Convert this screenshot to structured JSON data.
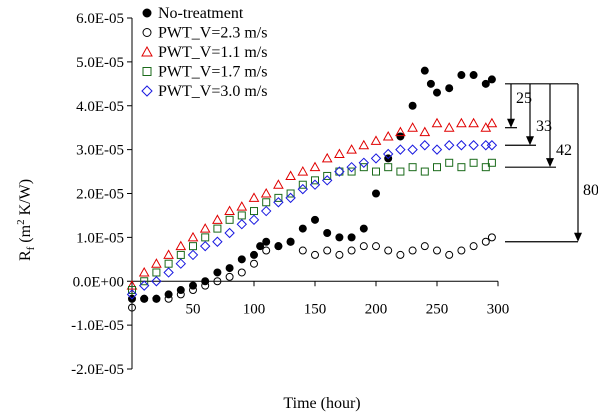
{
  "chart_data": {
    "type": "scatter",
    "title": "",
    "xlabel": "Time (hour)",
    "ylabel_base": "R",
    "ylabel_sub": "f",
    "ylabel_open": " (m",
    "ylabel_sup": "2",
    "ylabel_rest": " K/W)",
    "xlim": [
      0,
      300
    ],
    "ylim": [
      -2e-05,
      6e-05
    ],
    "x_ticks": [
      "50",
      "100",
      "150",
      "200",
      "250",
      "300"
    ],
    "x_tick_values": [
      50,
      100,
      150,
      200,
      250,
      300
    ],
    "y_ticks": [
      "6.0E-05",
      "5.0E-05",
      "4.0E-05",
      "3.0E-05",
      "2.0E-05",
      "1.0E-05",
      "0.0E+00",
      "-1.0E-05",
      "-2.0E-05"
    ],
    "y_tick_values": [
      6e-05,
      5e-05,
      4e-05,
      3e-05,
      2e-05,
      1e-05,
      0,
      -1e-05,
      -2e-05
    ],
    "legend_position": "top-left",
    "series": [
      {
        "name": "No-treatment",
        "marker": "filled-circle",
        "color": "#000000",
        "points": [
          [
            0,
            -4e-06
          ],
          [
            10,
            -4e-06
          ],
          [
            20,
            -4e-06
          ],
          [
            30,
            -3e-06
          ],
          [
            40,
            -2e-06
          ],
          [
            50,
            -1e-06
          ],
          [
            60,
            0
          ],
          [
            70,
            2e-06
          ],
          [
            80,
            3e-06
          ],
          [
            90,
            5e-06
          ],
          [
            100,
            6e-06
          ],
          [
            105,
            8e-06
          ],
          [
            110,
            9e-06
          ],
          [
            120,
            8e-06
          ],
          [
            130,
            9e-06
          ],
          [
            140,
            1.2e-05
          ],
          [
            150,
            1.4e-05
          ],
          [
            160,
            1.1e-05
          ],
          [
            170,
            1e-05
          ],
          [
            180,
            1e-05
          ],
          [
            190,
            1.2e-05
          ],
          [
            200,
            2e-05
          ],
          [
            210,
            2.8e-05
          ],
          [
            220,
            3.3e-05
          ],
          [
            230,
            4e-05
          ],
          [
            240,
            4.8e-05
          ],
          [
            245,
            4.5e-05
          ],
          [
            250,
            4.3e-05
          ],
          [
            260,
            4.4e-05
          ],
          [
            270,
            4.7e-05
          ],
          [
            280,
            4.7e-05
          ],
          [
            290,
            4.5e-05
          ],
          [
            295,
            4.6e-05
          ]
        ]
      },
      {
        "name": "PWT_V=2.3 m/s",
        "marker": "open-circle",
        "color": "#000000",
        "points": [
          [
            0,
            -6e-06
          ],
          [
            10,
            -4e-06
          ],
          [
            20,
            -4e-06
          ],
          [
            30,
            -4e-06
          ],
          [
            40,
            -3e-06
          ],
          [
            50,
            -2e-06
          ],
          [
            60,
            -1e-06
          ],
          [
            70,
            0
          ],
          [
            80,
            1e-06
          ],
          [
            90,
            2e-06
          ],
          [
            100,
            4e-06
          ],
          [
            110,
            7e-06
          ],
          [
            120,
            8e-06
          ],
          [
            130,
            9e-06
          ],
          [
            140,
            7e-06
          ],
          [
            150,
            6e-06
          ],
          [
            160,
            7e-06
          ],
          [
            170,
            6e-06
          ],
          [
            180,
            7e-06
          ],
          [
            190,
            8e-06
          ],
          [
            200,
            8e-06
          ],
          [
            210,
            7e-06
          ],
          [
            220,
            6e-06
          ],
          [
            230,
            7e-06
          ],
          [
            240,
            8e-06
          ],
          [
            250,
            7e-06
          ],
          [
            260,
            6e-06
          ],
          [
            270,
            7e-06
          ],
          [
            280,
            8e-06
          ],
          [
            290,
            9e-06
          ],
          [
            295,
            1e-05
          ]
        ]
      },
      {
        "name": "PWT_V=1.1 m/s",
        "marker": "open-triangle",
        "color": "#e00000",
        "points": [
          [
            0,
            -1e-06
          ],
          [
            10,
            2e-06
          ],
          [
            20,
            4e-06
          ],
          [
            30,
            6e-06
          ],
          [
            40,
            8e-06
          ],
          [
            50,
            1e-05
          ],
          [
            60,
            1.2e-05
          ],
          [
            70,
            1.4e-05
          ],
          [
            80,
            1.6e-05
          ],
          [
            90,
            1.7e-05
          ],
          [
            100,
            1.9e-05
          ],
          [
            110,
            2e-05
          ],
          [
            120,
            2.2e-05
          ],
          [
            130,
            2.4e-05
          ],
          [
            140,
            2.5e-05
          ],
          [
            150,
            2.6e-05
          ],
          [
            160,
            2.8e-05
          ],
          [
            170,
            2.9e-05
          ],
          [
            180,
            3e-05
          ],
          [
            190,
            3.1e-05
          ],
          [
            200,
            3.2e-05
          ],
          [
            210,
            3.3e-05
          ],
          [
            220,
            3.4e-05
          ],
          [
            230,
            3.5e-05
          ],
          [
            240,
            3.4e-05
          ],
          [
            250,
            3.6e-05
          ],
          [
            260,
            3.5e-05
          ],
          [
            270,
            3.6e-05
          ],
          [
            280,
            3.6e-05
          ],
          [
            290,
            3.5e-05
          ],
          [
            295,
            3.6e-05
          ]
        ]
      },
      {
        "name": "PWT_V=1.7 m/s",
        "marker": "open-square",
        "color": "#1a6a1a",
        "points": [
          [
            0,
            -2e-06
          ],
          [
            10,
            0
          ],
          [
            20,
            2e-06
          ],
          [
            30,
            4e-06
          ],
          [
            40,
            6e-06
          ],
          [
            50,
            8e-06
          ],
          [
            60,
            1e-05
          ],
          [
            70,
            1.2e-05
          ],
          [
            80,
            1.4e-05
          ],
          [
            90,
            1.5e-05
          ],
          [
            100,
            1.6e-05
          ],
          [
            110,
            1.8e-05
          ],
          [
            120,
            1.9e-05
          ],
          [
            130,
            2e-05
          ],
          [
            140,
            2.2e-05
          ],
          [
            150,
            2.3e-05
          ],
          [
            160,
            2.4e-05
          ],
          [
            170,
            2.5e-05
          ],
          [
            180,
            2.5e-05
          ],
          [
            190,
            2.6e-05
          ],
          [
            200,
            2.5e-05
          ],
          [
            210,
            2.6e-05
          ],
          [
            220,
            2.5e-05
          ],
          [
            230,
            2.6e-05
          ],
          [
            240,
            2.5e-05
          ],
          [
            250,
            2.6e-05
          ],
          [
            260,
            2.7e-05
          ],
          [
            270,
            2.6e-05
          ],
          [
            280,
            2.7e-05
          ],
          [
            290,
            2.6e-05
          ],
          [
            295,
            2.7e-05
          ]
        ]
      },
      {
        "name": "PWT_V=3.0 m/s",
        "marker": "open-diamond",
        "color": "#1a1ae0",
        "points": [
          [
            0,
            -3e-06
          ],
          [
            10,
            -1e-06
          ],
          [
            20,
            0
          ],
          [
            30,
            2e-06
          ],
          [
            40,
            4e-06
          ],
          [
            50,
            6e-06
          ],
          [
            60,
            8e-06
          ],
          [
            70,
            9e-06
          ],
          [
            80,
            1.1e-05
          ],
          [
            90,
            1.3e-05
          ],
          [
            100,
            1.4e-05
          ],
          [
            110,
            1.6e-05
          ],
          [
            120,
            1.8e-05
          ],
          [
            130,
            1.9e-05
          ],
          [
            140,
            2.1e-05
          ],
          [
            150,
            2.2e-05
          ],
          [
            160,
            2.3e-05
          ],
          [
            170,
            2.5e-05
          ],
          [
            180,
            2.6e-05
          ],
          [
            190,
            2.7e-05
          ],
          [
            200,
            2.8e-05
          ],
          [
            210,
            2.9e-05
          ],
          [
            220,
            3e-05
          ],
          [
            230,
            3e-05
          ],
          [
            240,
            3.1e-05
          ],
          [
            250,
            3e-05
          ],
          [
            260,
            3.1e-05
          ],
          [
            270,
            3.1e-05
          ],
          [
            280,
            3.1e-05
          ],
          [
            290,
            3.1e-05
          ],
          [
            295,
            3.1e-05
          ]
        ]
      }
    ],
    "annotations": [
      {
        "label": "25",
        "y_top": 4.5e-05,
        "y_bottom": 3.5e-05
      },
      {
        "label": "33",
        "y_top": 4.5e-05,
        "y_bottom": 3.1e-05
      },
      {
        "label": "42",
        "y_top": 4.5e-05,
        "y_bottom": 2.6e-05
      },
      {
        "label": "80",
        "y_top": 4.5e-05,
        "y_bottom": 9e-06
      }
    ]
  }
}
